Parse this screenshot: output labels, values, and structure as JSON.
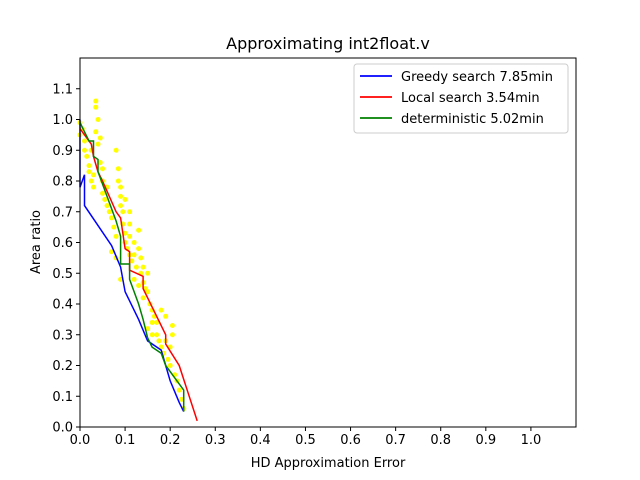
{
  "chart_data": {
    "type": "line",
    "title": "Approximating int2float.v",
    "xlabel": "HD Approximation Error",
    "ylabel": "Area ratio",
    "xlim": [
      0.0,
      1.1
    ],
    "ylim": [
      0.0,
      1.2
    ],
    "xticks": [
      "0.0",
      "0.1",
      "0.2",
      "0.3",
      "0.4",
      "0.5",
      "0.6",
      "0.7",
      "0.8",
      "0.9",
      "1.0"
    ],
    "yticks": [
      "0.0",
      "0.1",
      "0.2",
      "0.3",
      "0.4",
      "0.5",
      "0.6",
      "0.7",
      "0.8",
      "0.9",
      "1.0",
      "1.1"
    ],
    "grid": false,
    "legend_position": "top-right",
    "series": [
      {
        "name": "Greedy search 7.85min",
        "color": "#0000ff",
        "x": [
          0.0,
          0.0,
          0.01,
          0.01,
          0.07,
          0.09,
          0.1,
          0.13,
          0.15,
          0.18,
          0.19,
          0.2,
          0.22,
          0.23
        ],
        "y": [
          1.0,
          0.78,
          0.82,
          0.72,
          0.59,
          0.52,
          0.44,
          0.35,
          0.28,
          0.25,
          0.2,
          0.15,
          0.08,
          0.05
        ]
      },
      {
        "name": "Local search 3.54min",
        "color": "#ff0000",
        "x": [
          0.0,
          0.02,
          0.025,
          0.03,
          0.04,
          0.05,
          0.08,
          0.09,
          0.1,
          0.11,
          0.11,
          0.14,
          0.14,
          0.19,
          0.19,
          0.22,
          0.24,
          0.26
        ],
        "y": [
          0.97,
          0.93,
          0.92,
          0.88,
          0.83,
          0.8,
          0.7,
          0.68,
          0.58,
          0.57,
          0.51,
          0.49,
          0.45,
          0.3,
          0.27,
          0.2,
          0.11,
          0.02
        ]
      },
      {
        "name": "deterministic 5.02min",
        "color": "#008000",
        "x": [
          0.0,
          0.01,
          0.02,
          0.03,
          0.03,
          0.04,
          0.04,
          0.08,
          0.09,
          0.09,
          0.11,
          0.11,
          0.13,
          0.14,
          0.15,
          0.16,
          0.18,
          0.19,
          0.21,
          0.23,
          0.23
        ],
        "y": [
          0.99,
          0.96,
          0.93,
          0.93,
          0.88,
          0.87,
          0.83,
          0.67,
          0.62,
          0.53,
          0.53,
          0.48,
          0.4,
          0.35,
          0.29,
          0.26,
          0.24,
          0.2,
          0.16,
          0.12,
          0.05
        ]
      }
    ],
    "scatter": {
      "color": "#ffff00",
      "points": [
        [
          0.0,
          0.99
        ],
        [
          0.0,
          0.95
        ],
        [
          0.005,
          0.97
        ],
        [
          0.01,
          0.93
        ],
        [
          0.01,
          0.9
        ],
        [
          0.015,
          0.88
        ],
        [
          0.02,
          0.85
        ],
        [
          0.02,
          0.83
        ],
        [
          0.025,
          0.8
        ],
        [
          0.03,
          0.82
        ],
        [
          0.03,
          0.78
        ],
        [
          0.035,
          1.06
        ],
        [
          0.035,
          1.04
        ],
        [
          0.04,
          1.0
        ],
        [
          0.035,
          0.96
        ],
        [
          0.04,
          0.92
        ],
        [
          0.045,
          0.86
        ],
        [
          0.05,
          0.8
        ],
        [
          0.05,
          0.76
        ],
        [
          0.055,
          0.74
        ],
        [
          0.06,
          0.72
        ],
        [
          0.065,
          0.7
        ],
        [
          0.07,
          0.68
        ],
        [
          0.075,
          0.65
        ],
        [
          0.08,
          0.62
        ],
        [
          0.08,
          0.9
        ],
        [
          0.085,
          0.84
        ],
        [
          0.085,
          0.8
        ],
        [
          0.09,
          0.78
        ],
        [
          0.09,
          0.75
        ],
        [
          0.09,
          0.72
        ],
        [
          0.095,
          0.7
        ],
        [
          0.095,
          0.66
        ],
        [
          0.1,
          0.63
        ],
        [
          0.1,
          0.6
        ],
        [
          0.105,
          0.58
        ],
        [
          0.11,
          0.66
        ],
        [
          0.11,
          0.62
        ],
        [
          0.11,
          0.56
        ],
        [
          0.115,
          0.54
        ],
        [
          0.12,
          0.6
        ],
        [
          0.12,
          0.56
        ],
        [
          0.125,
          0.52
        ],
        [
          0.13,
          0.64
        ],
        [
          0.13,
          0.58
        ],
        [
          0.135,
          0.55
        ],
        [
          0.135,
          0.5
        ],
        [
          0.14,
          0.52
        ],
        [
          0.14,
          0.47
        ],
        [
          0.145,
          0.45
        ],
        [
          0.15,
          0.5
        ],
        [
          0.15,
          0.44
        ],
        [
          0.155,
          0.4
        ],
        [
          0.16,
          0.38
        ],
        [
          0.16,
          0.34
        ],
        [
          0.165,
          0.36
        ],
        [
          0.17,
          0.3
        ],
        [
          0.175,
          0.28
        ],
        [
          0.18,
          0.38
        ],
        [
          0.18,
          0.26
        ],
        [
          0.185,
          0.24
        ],
        [
          0.19,
          0.28
        ],
        [
          0.195,
          0.22
        ],
        [
          0.2,
          0.26
        ],
        [
          0.2,
          0.2
        ],
        [
          0.205,
          0.3
        ],
        [
          0.205,
          0.33
        ],
        [
          0.21,
          0.17
        ],
        [
          0.215,
          0.15
        ],
        [
          0.22,
          0.12
        ],
        [
          0.225,
          0.09
        ],
        [
          0.23,
          0.06
        ],
        [
          0.09,
          0.48
        ],
        [
          0.07,
          0.57
        ],
        [
          0.08,
          0.55
        ],
        [
          0.12,
          0.48
        ],
        [
          0.14,
          0.42
        ],
        [
          0.16,
          0.3
        ],
        [
          0.17,
          0.34
        ],
        [
          0.19,
          0.36
        ],
        [
          0.15,
          0.32
        ],
        [
          0.11,
          0.7
        ],
        [
          0.1,
          0.74
        ],
        [
          0.13,
          0.46
        ],
        [
          0.06,
          0.78
        ],
        [
          0.05,
          0.84
        ],
        [
          0.025,
          0.9
        ],
        [
          0.045,
          0.94
        ]
      ]
    }
  }
}
